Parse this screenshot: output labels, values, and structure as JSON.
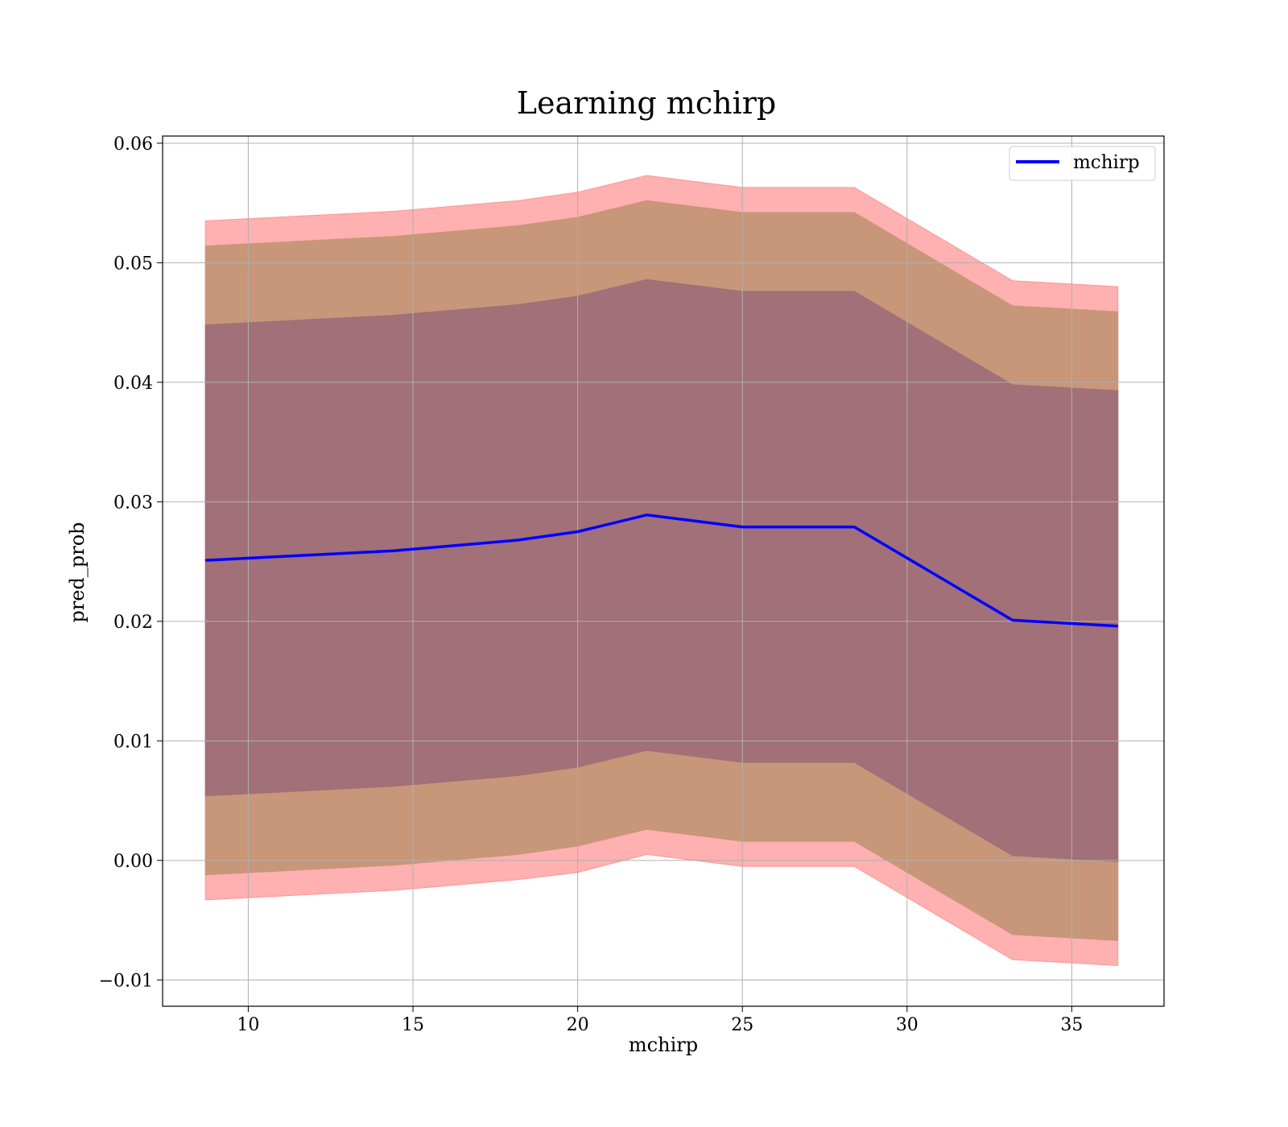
{
  "chart_data": {
    "type": "line",
    "title": "Learning mchirp",
    "xlabel": "mchirp",
    "ylabel": "pred_prob",
    "xlim": [
      7.4,
      37.8
    ],
    "ylim": [
      -0.0122,
      0.0606
    ],
    "xticks": [
      10,
      15,
      20,
      25,
      30,
      35
    ],
    "yticks": [
      -0.01,
      0.0,
      0.01,
      0.02,
      0.03,
      0.04,
      0.05,
      0.06
    ],
    "ytick_labels": [
      "−0.01",
      "0.00",
      "0.01",
      "0.02",
      "0.03",
      "0.04",
      "0.05",
      "0.06"
    ],
    "grid": true,
    "legend_position": "upper right",
    "x": [
      8.7,
      14.4,
      18.2,
      20.0,
      22.1,
      25.0,
      28.4,
      33.2,
      36.4
    ],
    "series": [
      {
        "name": "mchirp",
        "color": "#0000ff",
        "values": [
          0.0251,
          0.0259,
          0.0268,
          0.0275,
          0.0289,
          0.0279,
          0.0279,
          0.0201,
          0.0196
        ]
      }
    ],
    "bands": [
      {
        "role": "outer",
        "color": "#ff9696",
        "opacity": 0.75,
        "upper": [
          0.0535,
          0.0543,
          0.0552,
          0.0559,
          0.0573,
          0.0563,
          0.0563,
          0.0485,
          0.048
        ],
        "lower": [
          -0.0033,
          -0.0025,
          -0.0016,
          -0.001,
          0.0005,
          -0.0005,
          -0.0005,
          -0.0083,
          -0.0088
        ]
      },
      {
        "role": "middle",
        "color": "#c89678",
        "opacity": 1,
        "upper": [
          0.0514,
          0.0522,
          0.0531,
          0.0538,
          0.0552,
          0.0542,
          0.0542,
          0.0464,
          0.0459
        ],
        "lower": [
          -0.0012,
          -0.0004,
          0.0005,
          0.0012,
          0.0026,
          0.0016,
          0.0016,
          -0.0062,
          -0.0067
        ]
      },
      {
        "role": "inner",
        "color": "#a17078",
        "opacity": 1,
        "upper": [
          0.0448,
          0.0456,
          0.0465,
          0.0472,
          0.0486,
          0.0476,
          0.0476,
          0.0398,
          0.0393
        ],
        "lower": [
          0.0054,
          0.0062,
          0.0071,
          0.0078,
          0.0092,
          0.0082,
          0.0082,
          0.0004,
          -0.0001
        ]
      }
    ]
  }
}
